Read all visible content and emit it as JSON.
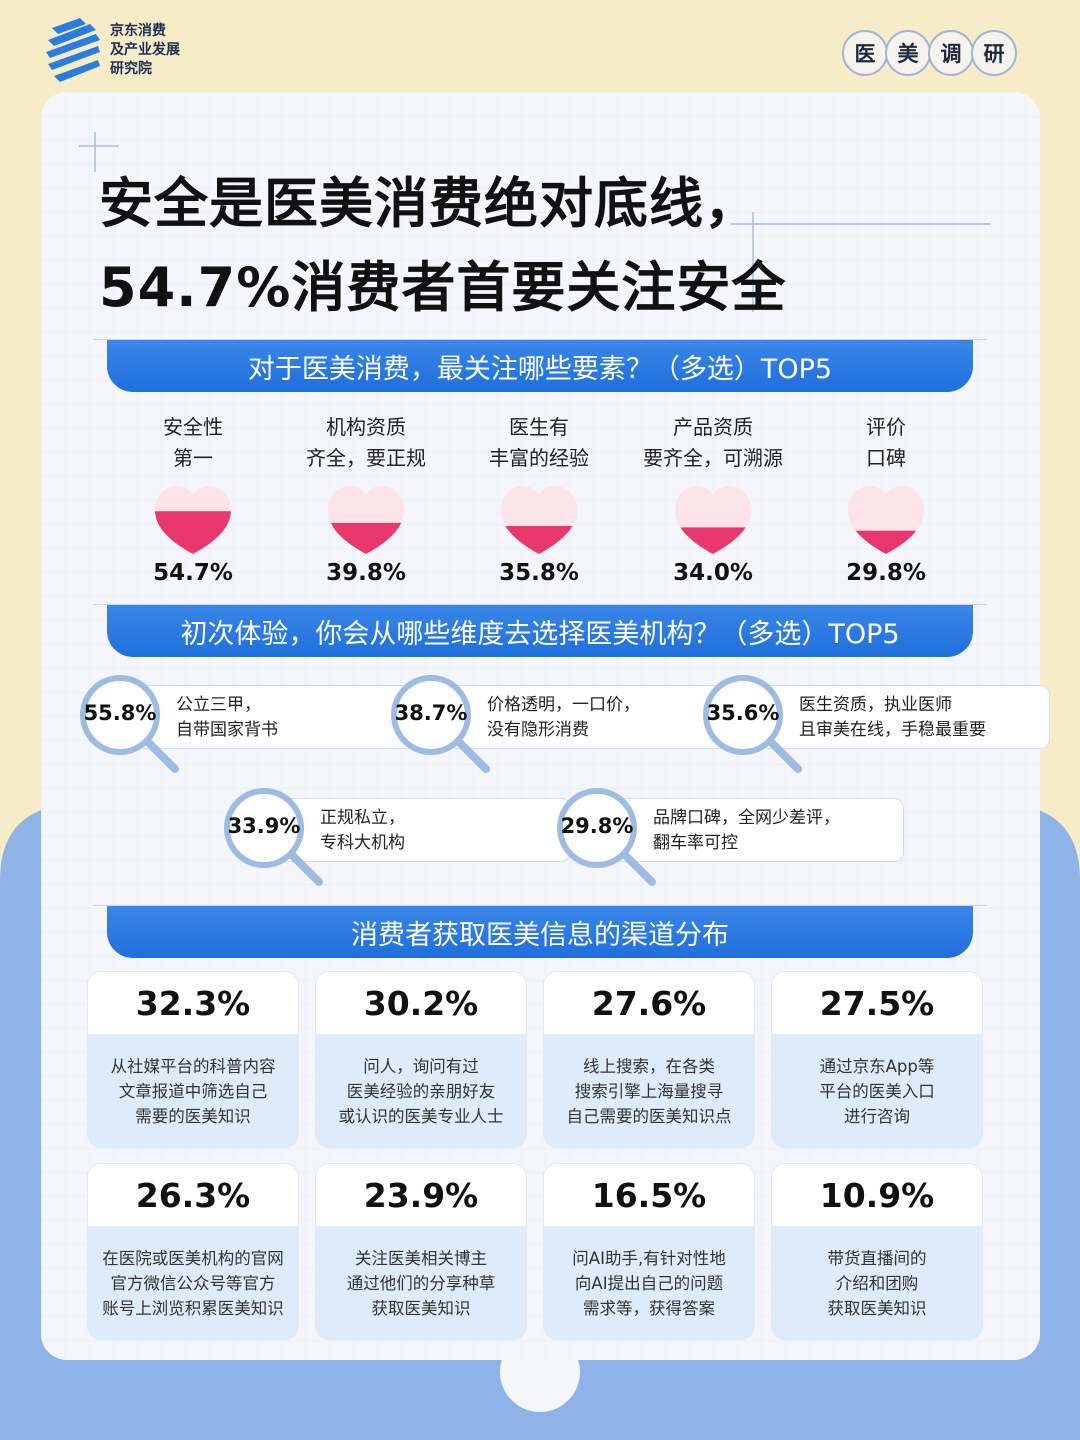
{
  "brand": {
    "name_lines": [
      "京东消费",
      "及产业发展",
      "研究院"
    ]
  },
  "tags": [
    "医",
    "美",
    "调",
    "研"
  ],
  "title": {
    "line1": "安全是医美消费绝对底线，",
    "line2": "54.7%消费者首要关注安全"
  },
  "colors": {
    "accent": "#2575e0",
    "heart_fill": "#e8376c",
    "heart_light": "#fde3ea",
    "lens_ring": "#9ebbe3"
  },
  "section1": {
    "heading": "对于医美消费，最关注哪些要素？（多选）TOP5"
  },
  "section2": {
    "heading": "初次体验，你会从哪些维度去选择医美机构？（多选）TOP5"
  },
  "section3": {
    "heading": "消费者获取医美信息的渠道分布"
  },
  "chart_data": [
    {
      "type": "bar",
      "categories": [
        "安全性\n第一",
        "机构资质\n齐全，要正规",
        "医生有\n丰富的经验",
        "产品资质\n要齐全，可溯源",
        "评价\n口碑"
      ],
      "values": [
        54.7,
        39.8,
        35.8,
        34.0,
        29.8
      ],
      "labels": [
        "54.7%",
        "39.8%",
        "35.8%",
        "34.0%",
        "29.8%"
      ]
    },
    {
      "type": "bar",
      "categories": [
        "公立三甲，\n自带国家背书",
        "价格透明，一口价，\n没有隐形消费",
        "医生资质，执业医师\n且审美在线，手稳最重要",
        "正规私立，\n专科大机构",
        "品牌口碑，全网少差评，\n翻车率可控"
      ],
      "values": [
        55.8,
        38.7,
        35.6,
        33.9,
        29.8
      ],
      "labels": [
        "55.8%",
        "38.7%",
        "35.6%",
        "33.9%",
        "29.8%"
      ]
    },
    {
      "type": "table",
      "categories": [
        "从社媒平台的科普内容\n文章报道中筛选自己\n需要的医美知识",
        "问人，询问有过\n医美经验的亲朋好友\n或认识的医美专业人士",
        "线上搜索，在各类\n搜索引擎上海量搜寻\n自己需要的医美知识点",
        "通过京东App等\n平台的医美入口\n进行咨询",
        "在医院或医美机构的官网\n官方微信公众号等官方\n账号上浏览积累医美知识",
        "关注医美相关博主\n通过他们的分享种草\n获取医美知识",
        "问AI助手,有针对性地\n向AI提出自己的问题\n需求等，获得答案",
        "带货直播间的\n介绍和团购\n获取医美知识"
      ],
      "values": [
        32.3,
        30.2,
        27.6,
        27.5,
        26.3,
        23.9,
        16.5,
        10.9
      ],
      "labels": [
        "32.3%",
        "30.2%",
        "27.6%",
        "27.5%",
        "26.3%",
        "23.9%",
        "16.5%",
        "10.9%"
      ]
    }
  ]
}
